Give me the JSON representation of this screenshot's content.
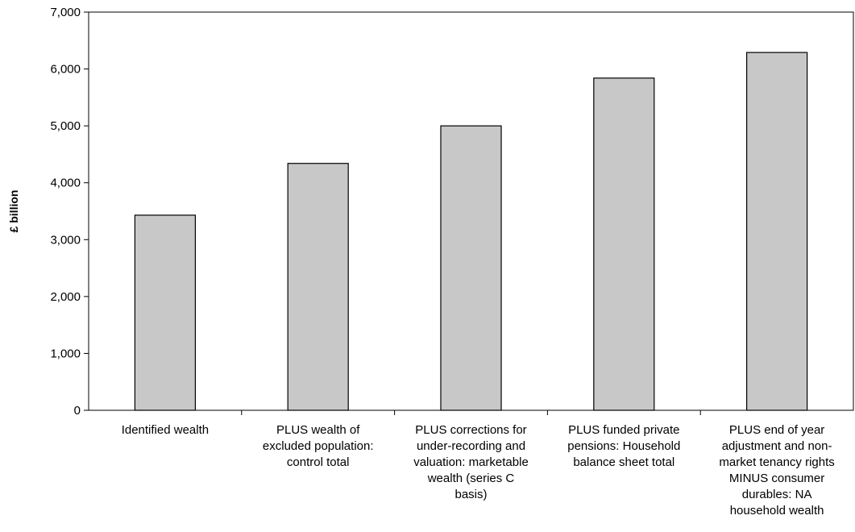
{
  "chart_data": {
    "type": "bar",
    "title": "",
    "xlabel": "",
    "ylabel": "£ billion",
    "ylim": [
      0,
      7000
    ],
    "yticks": [
      0,
      1000,
      2000,
      3000,
      4000,
      5000,
      6000,
      7000
    ],
    "ytick_labels": [
      "0",
      "1,000",
      "2,000",
      "3,000",
      "4,000",
      "5,000",
      "6,000",
      "7,000"
    ],
    "grid": false,
    "legend": "none",
    "bar_color": "#c8c8c8",
    "bar_edge_color": "#000000",
    "categories": [
      [
        "Identified wealth"
      ],
      [
        "PLUS wealth of",
        "excluded population:",
        "control total"
      ],
      [
        "PLUS corrections for",
        "under-recording and",
        "valuation: marketable",
        "wealth (series C",
        "basis)"
      ],
      [
        "PLUS funded private",
        "pensions: Household",
        "balance sheet total"
      ],
      [
        "PLUS end of year",
        "adjustment and non-",
        "market tenancy rights",
        "MINUS consumer",
        "durables: NA",
        "household wealth"
      ]
    ],
    "values": [
      3430,
      4340,
      5000,
      5840,
      6290
    ]
  }
}
